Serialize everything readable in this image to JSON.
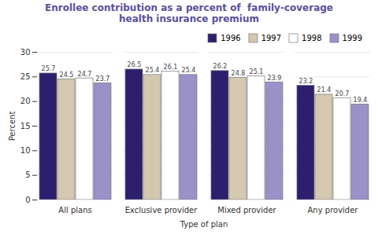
{
  "chart_data": {
    "type": "bar",
    "title": "Enrollee contribution as a percent of  family-coverage\nhealth insurance premium",
    "xlabel": "Type of plan",
    "ylabel": "Percent",
    "categories": [
      "All plans",
      "Exclusive provider",
      "Mixed provider",
      "Any provider"
    ],
    "series": [
      {
        "name": "1996",
        "color": "#2d1f6e",
        "values": [
          25.7,
          26.5,
          26.2,
          23.2
        ]
      },
      {
        "name": "1997",
        "color": "#d4c9b0",
        "values": [
          24.5,
          25.4,
          24.8,
          21.4
        ]
      },
      {
        "name": "1998",
        "color": "#ffffff",
        "values": [
          24.7,
          26.1,
          25.1,
          20.7
        ]
      },
      {
        "name": "1999",
        "color": "#9b91c9",
        "values": [
          23.7,
          25.4,
          23.9,
          19.4
        ]
      }
    ],
    "ylim": [
      0,
      30
    ],
    "yticks": [
      0,
      5,
      10,
      15,
      20,
      25,
      30
    ],
    "grid": true,
    "legend": "upper right",
    "data_labels": true
  }
}
